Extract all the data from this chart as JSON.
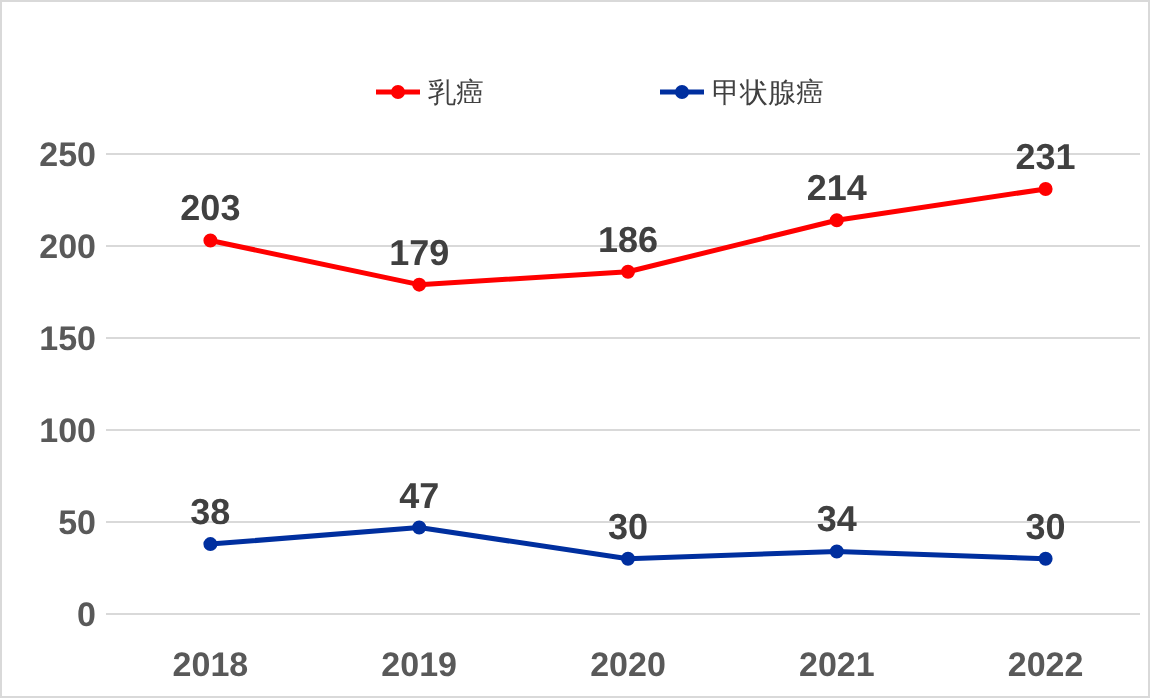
{
  "chart_data": {
    "type": "line",
    "categories": [
      "2018",
      "2019",
      "2020",
      "2021",
      "2022"
    ],
    "series": [
      {
        "name": "乳癌",
        "color": "#ff0000",
        "values": [
          203,
          179,
          186,
          214,
          231
        ]
      },
      {
        "name": "甲状腺癌",
        "color": "#002f9f",
        "values": [
          38,
          47,
          30,
          34,
          30
        ]
      }
    ],
    "ylim": [
      0,
      250
    ],
    "yticks": [
      0,
      50,
      100,
      150,
      200,
      250
    ],
    "grid": "y",
    "legend": "top",
    "marker": "circle",
    "line_style": "solid",
    "data_labels": true
  }
}
